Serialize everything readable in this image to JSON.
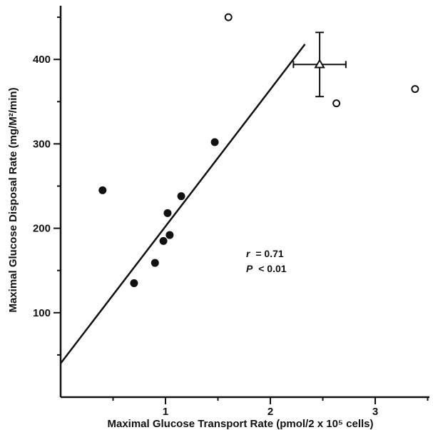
{
  "chart_data": {
    "type": "scatter",
    "xlabel": "Maximal Glucose Transport Rate (pmol/2 x 10⁵ cells)",
    "ylabel": "Maximal Glucose Disposal Rate (mg/M²/min)",
    "x_ticks": [
      1,
      2,
      3
    ],
    "y_ticks": [
      100,
      200,
      300,
      400
    ],
    "xlim": [
      0,
      3.5
    ],
    "ylim": [
      0,
      460
    ],
    "grid": false,
    "series": [
      {
        "marker": "filled-circle",
        "points": [
          {
            "x": 0.4,
            "y": 245
          },
          {
            "x": 0.7,
            "y": 135
          },
          {
            "x": 0.9,
            "y": 159
          },
          {
            "x": 0.98,
            "y": 185
          },
          {
            "x": 1.02,
            "y": 218
          },
          {
            "x": 1.04,
            "y": 192
          },
          {
            "x": 1.15,
            "y": 238
          },
          {
            "x": 1.47,
            "y": 302
          }
        ]
      },
      {
        "marker": "open-circle",
        "points": [
          {
            "x": 1.6,
            "y": 450
          },
          {
            "x": 2.63,
            "y": 348
          },
          {
            "x": 3.38,
            "y": 365
          }
        ]
      },
      {
        "marker": "open-triangle",
        "points": [
          {
            "x": 2.47,
            "y": 394,
            "x_err": 0.25,
            "y_err": 38
          }
        ]
      }
    ],
    "regression_line": {
      "x1": 0,
      "y1": 40,
      "x2": 2.33,
      "y2": 418
    },
    "annotations": {
      "r_symbol": "r",
      "r_value": "= 0.71",
      "p_symbol": "P",
      "p_value": "< 0.01"
    }
  }
}
